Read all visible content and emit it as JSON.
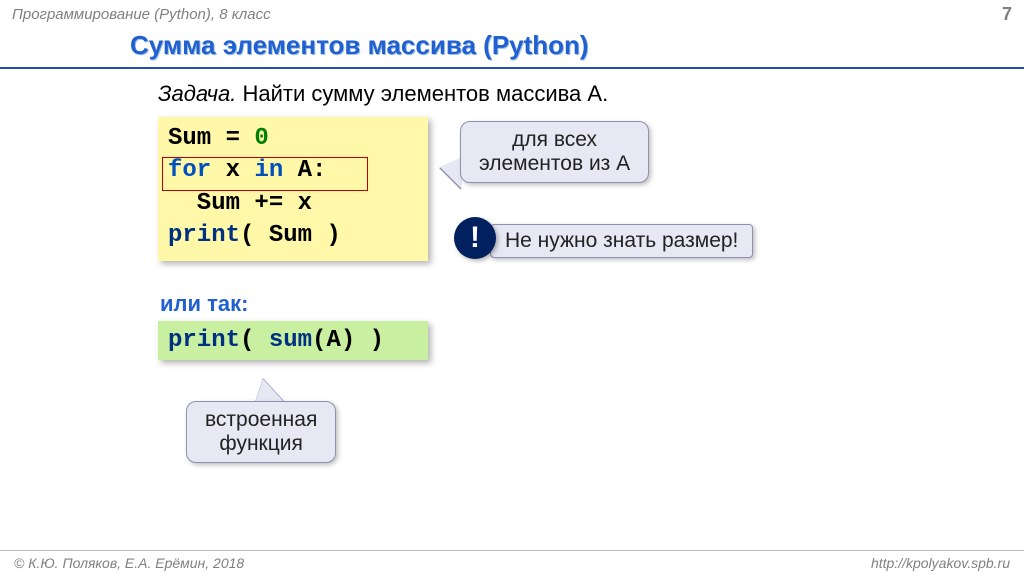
{
  "header": {
    "left": "Программирование (Python), 8 класс",
    "page": "7"
  },
  "title": "Сумма элементов массива (Python)",
  "task": {
    "label": "Задача.",
    "text": " Найти сумму элементов массива A."
  },
  "code1": {
    "l1_a": "Sum = ",
    "l1_b": "0",
    "l2_a": "for",
    "l2_b": " x ",
    "l2_c": "in",
    "l2_d": " A:",
    "l3": "  Sum += x",
    "l4_a": "print",
    "l4_b": "( Sum )"
  },
  "callout1": {
    "line1": "для всех",
    "line2": "элементов из A"
  },
  "bang": "!",
  "callout2": "Не нужно знать размер!",
  "or_text": "или так:",
  "code2": {
    "a": "print",
    "b": "( ",
    "c": "sum",
    "d": "(A) )"
  },
  "callout3": {
    "line1": "встроенная",
    "line2": "функция"
  },
  "footer": {
    "left": "© К.Ю. Поляков, Е.А. Ерёмин, 2018",
    "right": "http://kpolyakov.spb.ru"
  },
  "colors": {
    "title": "#2060d0",
    "rule": "#2050b0",
    "code_bg1": "#fff8a8",
    "code_bg2": "#c8f0a0",
    "callout_bg": "#e8e8f4",
    "callout_border": "#9090b0",
    "bang_bg": "#002060",
    "kw_green": "#008000",
    "kw_blue": "#0050c0",
    "kw_navy": "#003080",
    "red_box": "#c00000",
    "gray_text": "#808080"
  }
}
